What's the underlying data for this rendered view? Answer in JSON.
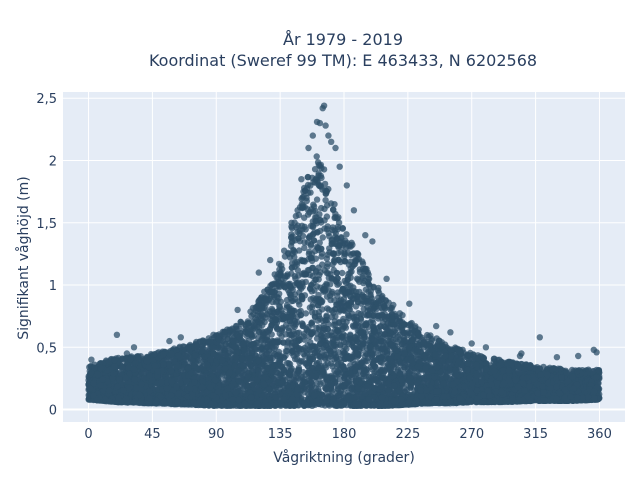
{
  "chart_data": {
    "type": "scatter",
    "title_line1": "År 1979 - 2019",
    "title_line2": "Koordinat (Sweref 99 TM): E 463433, N 6202568",
    "xlabel": "Vågriktning (grader)",
    "ylabel": "Signifikant våghöjd (m)",
    "xlim": [
      -18,
      378
    ],
    "ylim": [
      -0.1,
      2.55
    ],
    "xticks": [
      0,
      45,
      90,
      135,
      180,
      225,
      270,
      315,
      360
    ],
    "xtick_labels": [
      "0",
      "45",
      "90",
      "135",
      "180",
      "225",
      "270",
      "315",
      "360"
    ],
    "yticks": [
      0,
      0.5,
      1,
      1.5,
      2,
      2.5
    ],
    "ytick_labels": [
      "0",
      "0,5",
      "1",
      "1,5",
      "2",
      "2,5"
    ],
    "grid": true,
    "marker_color": "#2e5069",
    "plot_bg": "#e5ecf6",
    "envelope": {
      "x": [
        0,
        20,
        45,
        70,
        90,
        110,
        130,
        140,
        150,
        155,
        160,
        165,
        170,
        180,
        190,
        200,
        210,
        225,
        240,
        255,
        270,
        290,
        315,
        340,
        360
      ],
      "y_upper": [
        0.35,
        0.42,
        0.45,
        0.52,
        0.6,
        0.72,
        1.05,
        1.35,
        1.75,
        1.95,
        2.05,
        2.0,
        1.75,
        1.45,
        1.25,
        1.05,
        0.9,
        0.72,
        0.6,
        0.52,
        0.45,
        0.4,
        0.35,
        0.32,
        0.32
      ],
      "y_lower": [
        0.08,
        0.06,
        0.05,
        0.04,
        0.03,
        0.03,
        0.03,
        0.03,
        0.03,
        0.03,
        0.03,
        0.03,
        0.03,
        0.03,
        0.03,
        0.03,
        0.03,
        0.04,
        0.05,
        0.05,
        0.06,
        0.06,
        0.07,
        0.07,
        0.08
      ]
    },
    "outlier_points": [
      {
        "x": 20,
        "y": 0.6
      },
      {
        "x": 27,
        "y": 0.45
      },
      {
        "x": 32,
        "y": 0.5
      },
      {
        "x": 57,
        "y": 0.55
      },
      {
        "x": 65,
        "y": 0.58
      },
      {
        "x": 88,
        "y": 0.6
      },
      {
        "x": 105,
        "y": 0.8
      },
      {
        "x": 120,
        "y": 1.1
      },
      {
        "x": 128,
        "y": 1.2
      },
      {
        "x": 143,
        "y": 1.5
      },
      {
        "x": 150,
        "y": 1.85
      },
      {
        "x": 155,
        "y": 2.1
      },
      {
        "x": 158,
        "y": 2.2
      },
      {
        "x": 161,
        "y": 2.31
      },
      {
        "x": 163,
        "y": 2.3
      },
      {
        "x": 165,
        "y": 2.42
      },
      {
        "x": 166,
        "y": 2.44
      },
      {
        "x": 167,
        "y": 2.28
      },
      {
        "x": 169,
        "y": 2.2
      },
      {
        "x": 171,
        "y": 2.15
      },
      {
        "x": 174,
        "y": 2.1
      },
      {
        "x": 177,
        "y": 1.95
      },
      {
        "x": 182,
        "y": 1.8
      },
      {
        "x": 187,
        "y": 1.6
      },
      {
        "x": 195,
        "y": 1.4
      },
      {
        "x": 200,
        "y": 1.35
      },
      {
        "x": 210,
        "y": 1.05
      },
      {
        "x": 226,
        "y": 0.85
      },
      {
        "x": 245,
        "y": 0.67
      },
      {
        "x": 255,
        "y": 0.62
      },
      {
        "x": 270,
        "y": 0.53
      },
      {
        "x": 280,
        "y": 0.5
      },
      {
        "x": 305,
        "y": 0.45
      },
      {
        "x": 304,
        "y": 0.43
      },
      {
        "x": 318,
        "y": 0.58
      },
      {
        "x": 330,
        "y": 0.42
      },
      {
        "x": 345,
        "y": 0.43
      },
      {
        "x": 356,
        "y": 0.48
      },
      {
        "x": 358,
        "y": 0.46
      },
      {
        "x": 2,
        "y": 0.4
      }
    ]
  }
}
